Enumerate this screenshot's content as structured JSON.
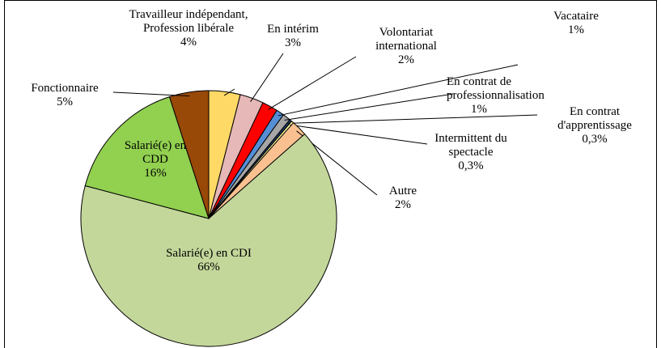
{
  "chart_data": {
    "type": "pie",
    "categories": [
      "Travailleur indépendant, Profession libérale",
      "En intérim",
      "Volontariat international",
      "Vacataire",
      "En contrat de professionnalisation",
      "En contrat d'apprentissage",
      "Intermittent du spectacle",
      "Autre",
      "Salarié(e) en CDI",
      "Salarié(e) en CDD",
      "Fonctionnaire"
    ],
    "values": [
      4,
      3,
      2,
      1,
      1,
      0.3,
      0.3,
      2,
      66,
      16,
      5
    ],
    "value_labels": [
      "4%",
      "3%",
      "2%",
      "1%",
      "1%",
      "0,3%",
      "0,3%",
      "2%",
      "66%",
      "16%",
      "5%"
    ],
    "colors": [
      "#FFD966",
      "#E6B8B7",
      "#FF0000",
      "#558ED5",
      "#A6A6A6",
      "#1F3864",
      "#FFFF99",
      "#FAC090",
      "#C4D79B",
      "#92D050",
      "#984807"
    ]
  }
}
